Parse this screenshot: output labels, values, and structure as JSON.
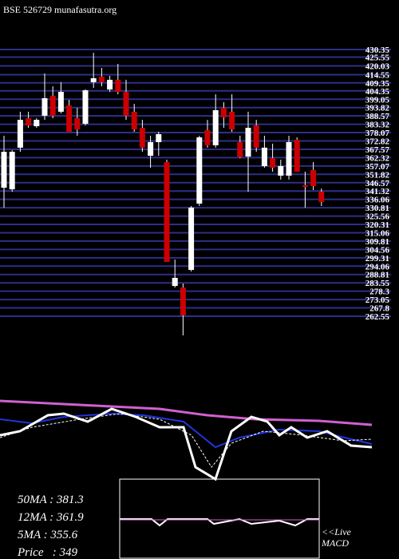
{
  "header": {
    "title": "BSE 526729 munafasutra.org"
  },
  "chart_data": {
    "type": "candlestick",
    "up_color": "#ffffff",
    "down_color": "#cc0000",
    "grid": true,
    "grid_color": "#2e2e8a",
    "ylim": [
      262.55,
      430.35
    ],
    "yticks": [
      430.35,
      425.55,
      420.03,
      414.55,
      409.35,
      404.35,
      399.05,
      393.82,
      388.57,
      383.32,
      378.07,
      372.82,
      367.57,
      362.32,
      357.07,
      351.82,
      346.57,
      341.32,
      336.06,
      330.81,
      325.56,
      320.31,
      315.06,
      309.81,
      304.56,
      299.31,
      294.06,
      288.81,
      283.55,
      278.3,
      273.05,
      267.8,
      262.55
    ],
    "open": [
      343.4,
      342.4,
      368.6,
      387.1,
      382.1,
      388.7,
      401.2,
      391.2,
      395.2,
      387.1,
      383.6,
      409.8,
      413.3,
      405.2,
      411.3,
      403.7,
      391.2,
      381.1,
      363.5,
      372.1,
      359.5,
      281.6,
      280.6,
      291.7,
      333.4,
      379.6,
      370.1,
      393.7,
      391.2,
      372.1,
      363.0,
      382.6,
      357.0,
      362.0,
      351.0,
      351.0,
      373.6,
      344.9,
      354.5,
      340.9
    ],
    "high": [
      376.1,
      367.0,
      391.2,
      391.2,
      387.1,
      415.3,
      407.2,
      409.8,
      398.7,
      393.7,
      405.2,
      428.3,
      418.8,
      413.8,
      421.3,
      411.3,
      396.2,
      386.1,
      376.1,
      378.6,
      361.0,
      298.2,
      283.1,
      331.9,
      376.1,
      386.1,
      402.2,
      397.2,
      402.2,
      376.1,
      391.2,
      386.1,
      376.1,
      371.1,
      361.0,
      376.1,
      375.1,
      353.5,
      359.5,
      342.9
    ],
    "low": [
      330.9,
      340.9,
      366.0,
      381.1,
      381.1,
      386.1,
      387.1,
      390.2,
      378.6,
      376.1,
      382.6,
      406.2,
      407.2,
      403.7,
      402.2,
      386.1,
      378.6,
      366.0,
      356.0,
      363.5,
      296.7,
      280.6,
      250.5,
      290.7,
      331.9,
      368.6,
      368.6,
      381.1,
      378.6,
      362.0,
      340.9,
      366.0,
      356.0,
      353.5,
      348.5,
      348.5,
      353.5,
      330.9,
      341.9,
      331.9
    ],
    "close": [
      366.0,
      366.0,
      386.1,
      382.6,
      386.1,
      399.7,
      388.7,
      403.7,
      378.6,
      380.1,
      404.7,
      412.3,
      409.8,
      411.3,
      403.7,
      388.7,
      380.1,
      368.6,
      372.1,
      377.1,
      296.7,
      286.7,
      263.1,
      330.9,
      375.1,
      370.1,
      392.2,
      387.6,
      380.1,
      362.5,
      381.1,
      368.6,
      368.6,
      356.0,
      357.0,
      372.1,
      353.5,
      343.9,
      344.4,
      334.4
    ]
  },
  "stats": [
    "50MA : 381.3",
    "12MA : 361.9",
    "5MA : 355.6",
    "Price   : 349"
  ],
  "macd_label": [
    "<<Live",
    "MACD"
  ]
}
